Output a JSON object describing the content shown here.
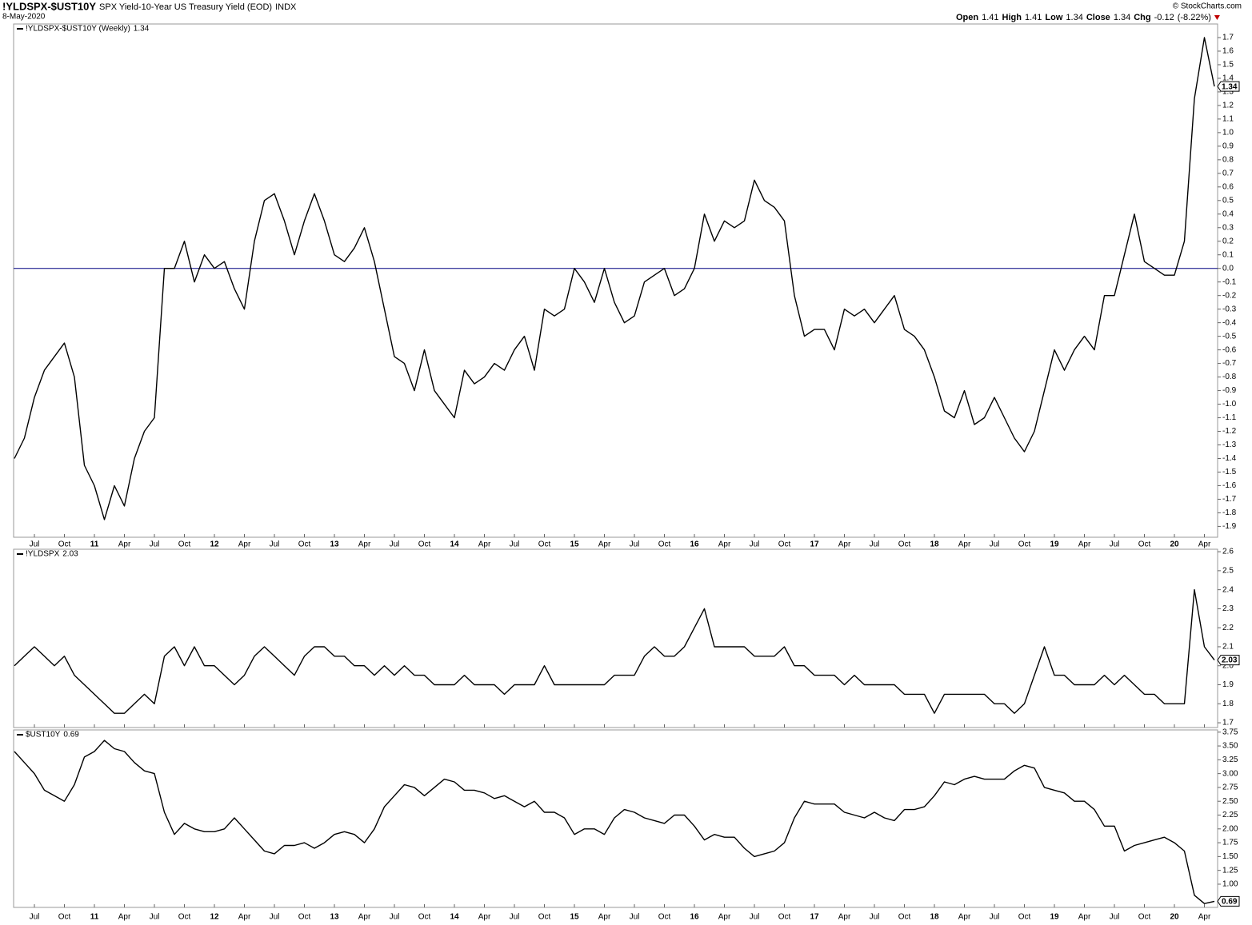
{
  "chart_data": {
    "type": "line",
    "title": "!YLDSPX-$UST10Y",
    "subtitle": "SPX Yield-10-Year US Treasury Yield (EOD)",
    "exchange": "INDX",
    "date": "8-May-2020",
    "source": "© StockCharts.com",
    "quote": [
      {
        "label": "Open",
        "value": 1.41
      },
      {
        "label": "High",
        "value": 1.41
      },
      {
        "label": "Low",
        "value": 1.34
      },
      {
        "label": "Close",
        "value": 1.34
      },
      {
        "label": "Chg",
        "value": -0.12
      }
    ],
    "change_percent": "(-8.22%)",
    "xlim": [
      "2010-05",
      "2020-05"
    ],
    "x": [
      "2010-05",
      "2010-06",
      "2010-07",
      "2010-08",
      "2010-09",
      "2010-10",
      "2010-11",
      "2010-12",
      "2011-01",
      "2011-02",
      "2011-03",
      "2011-04",
      "2011-05",
      "2011-06",
      "2011-07",
      "2011-08",
      "2011-09",
      "2011-10",
      "2011-11",
      "2011-12",
      "2012-01",
      "2012-02",
      "2012-03",
      "2012-04",
      "2012-05",
      "2012-06",
      "2012-07",
      "2012-08",
      "2012-09",
      "2012-10",
      "2012-11",
      "2012-12",
      "2013-01",
      "2013-02",
      "2013-03",
      "2013-04",
      "2013-05",
      "2013-06",
      "2013-07",
      "2013-08",
      "2013-09",
      "2013-10",
      "2013-11",
      "2013-12",
      "2014-01",
      "2014-02",
      "2014-03",
      "2014-04",
      "2014-05",
      "2014-06",
      "2014-07",
      "2014-08",
      "2014-09",
      "2014-10",
      "2014-11",
      "2014-12",
      "2015-01",
      "2015-02",
      "2015-03",
      "2015-04",
      "2015-05",
      "2015-06",
      "2015-07",
      "2015-08",
      "2015-09",
      "2015-10",
      "2015-11",
      "2015-12",
      "2016-01",
      "2016-02",
      "2016-03",
      "2016-04",
      "2016-05",
      "2016-06",
      "2016-07",
      "2016-08",
      "2016-09",
      "2016-10",
      "2016-11",
      "2016-12",
      "2017-01",
      "2017-02",
      "2017-03",
      "2017-04",
      "2017-05",
      "2017-06",
      "2017-07",
      "2017-08",
      "2017-09",
      "2017-10",
      "2017-11",
      "2017-12",
      "2018-01",
      "2018-02",
      "2018-03",
      "2018-04",
      "2018-05",
      "2018-06",
      "2018-07",
      "2018-08",
      "2018-09",
      "2018-10",
      "2018-11",
      "2018-12",
      "2019-01",
      "2019-02",
      "2019-03",
      "2019-04",
      "2019-05",
      "2019-06",
      "2019-07",
      "2019-08",
      "2019-09",
      "2019-10",
      "2019-11",
      "2019-12",
      "2020-01",
      "2020-02",
      "2020-03",
      "2020-04",
      "2020-05"
    ],
    "xticks": [
      {
        "value": "2010-07",
        "label": "Jul"
      },
      {
        "value": "2010-10",
        "label": "Oct"
      },
      {
        "value": "2011-01",
        "label": "11"
      },
      {
        "value": "2011-04",
        "label": "Apr"
      },
      {
        "value": "2011-07",
        "label": "Jul"
      },
      {
        "value": "2011-10",
        "label": "Oct"
      },
      {
        "value": "2012-01",
        "label": "12"
      },
      {
        "value": "2012-04",
        "label": "Apr"
      },
      {
        "value": "2012-07",
        "label": "Jul"
      },
      {
        "value": "2012-10",
        "label": "Oct"
      },
      {
        "value": "2013-01",
        "label": "13"
      },
      {
        "value": "2013-04",
        "label": "Apr"
      },
      {
        "value": "2013-07",
        "label": "Jul"
      },
      {
        "value": "2013-10",
        "label": "Oct"
      },
      {
        "value": "2014-01",
        "label": "14"
      },
      {
        "value": "2014-04",
        "label": "Apr"
      },
      {
        "value": "2014-07",
        "label": "Jul"
      },
      {
        "value": "2014-10",
        "label": "Oct"
      },
      {
        "value": "2015-01",
        "label": "15"
      },
      {
        "value": "2015-04",
        "label": "Apr"
      },
      {
        "value": "2015-07",
        "label": "Jul"
      },
      {
        "value": "2015-10",
        "label": "Oct"
      },
      {
        "value": "2016-01",
        "label": "16"
      },
      {
        "value": "2016-04",
        "label": "Apr"
      },
      {
        "value": "2016-07",
        "label": "Jul"
      },
      {
        "value": "2016-10",
        "label": "Oct"
      },
      {
        "value": "2017-01",
        "label": "17"
      },
      {
        "value": "2017-04",
        "label": "Apr"
      },
      {
        "value": "2017-07",
        "label": "Jul"
      },
      {
        "value": "2017-10",
        "label": "Oct"
      },
      {
        "value": "2018-01",
        "label": "18"
      },
      {
        "value": "2018-04",
        "label": "Apr"
      },
      {
        "value": "2018-07",
        "label": "Jul"
      },
      {
        "value": "2018-10",
        "label": "Oct"
      },
      {
        "value": "2019-01",
        "label": "19"
      },
      {
        "value": "2019-04",
        "label": "Apr"
      },
      {
        "value": "2019-07",
        "label": "Jul"
      },
      {
        "value": "2019-10",
        "label": "Oct"
      },
      {
        "value": "2020-01",
        "label": "20"
      },
      {
        "value": "2020-04",
        "label": "Apr"
      }
    ],
    "panels": [
      {
        "series": [
          {
            "name": "!YLDSPX-$UST10Y (Weekly)",
            "color": "#000000",
            "values": [
              -1.4,
              -1.25,
              -0.95,
              -0.75,
              -0.65,
              -0.55,
              -0.8,
              -1.45,
              -1.6,
              -1.85,
              -1.6,
              -1.75,
              -1.4,
              -1.2,
              -1.1,
              0.0,
              0.0,
              0.2,
              -0.1,
              0.1,
              0.0,
              0.05,
              -0.15,
              -0.3,
              0.2,
              0.5,
              0.55,
              0.35,
              0.1,
              0.35,
              0.55,
              0.35,
              0.1,
              0.05,
              0.15,
              0.3,
              0.05,
              -0.3,
              -0.65,
              -0.7,
              -0.9,
              -0.6,
              -0.9,
              -1.0,
              -1.1,
              -0.75,
              -0.85,
              -0.8,
              -0.7,
              -0.75,
              -0.6,
              -0.5,
              -0.75,
              -0.3,
              -0.35,
              -0.3,
              0.0,
              -0.1,
              -0.25,
              0.0,
              -0.25,
              -0.4,
              -0.35,
              -0.1,
              -0.05,
              0.0,
              -0.2,
              -0.15,
              0.0,
              0.4,
              0.2,
              0.35,
              0.3,
              0.35,
              0.65,
              0.5,
              0.45,
              0.35,
              -0.2,
              -0.5,
              -0.45,
              -0.45,
              -0.6,
              -0.3,
              -0.35,
              -0.3,
              -0.4,
              -0.3,
              -0.2,
              -0.45,
              -0.5,
              -0.6,
              -0.8,
              -1.05,
              -1.1,
              -0.9,
              -1.15,
              -1.1,
              -0.95,
              -1.1,
              -1.25,
              -1.35,
              -1.2,
              -0.9,
              -0.6,
              -0.75,
              -0.6,
              -0.5,
              -0.6,
              -0.2,
              -0.2,
              0.1,
              0.4,
              0.05,
              0.0,
              -0.05,
              -0.05,
              0.2,
              1.25,
              1.7,
              1.34
            ]
          }
        ],
        "ylim": [
          -1.98,
          1.8
        ],
        "yticks": [
          -1.9,
          -1.8,
          -1.7,
          -1.6,
          -1.5,
          -1.4,
          -1.3,
          -1.2,
          -1.1,
          {
            "value": -1,
            "label": "-1.0"
          },
          -0.9,
          -0.8,
          -0.7,
          -0.6,
          -0.5,
          -0.4,
          -0.3,
          -0.2,
          -0.1,
          {
            "value": 0,
            "label": "0.0"
          },
          0.1,
          0.2,
          0.3,
          0.4,
          0.5,
          0.6,
          0.7,
          0.8,
          0.9,
          {
            "value": 1,
            "label": "1.0"
          },
          1.1,
          1.2,
          1.3,
          1.4,
          1.5,
          1.6,
          1.7
        ],
        "reference_lines": [
          {
            "value": 0,
            "color": "#000080"
          }
        ]
      },
      {
        "series": [
          {
            "name": "!YLDSPX",
            "color": "#000000",
            "values": [
              2.0,
              2.05,
              2.1,
              2.05,
              2.0,
              2.05,
              1.95,
              1.9,
              1.85,
              1.8,
              1.75,
              1.75,
              1.8,
              1.85,
              1.8,
              2.05,
              2.1,
              2.0,
              2.1,
              2.0,
              2.0,
              1.95,
              1.9,
              1.95,
              2.05,
              2.1,
              2.05,
              2.0,
              1.95,
              2.05,
              2.1,
              2.1,
              2.05,
              2.05,
              2.0,
              2.0,
              1.95,
              2.0,
              1.95,
              2.0,
              1.95,
              1.95,
              1.9,
              1.9,
              1.9,
              1.95,
              1.9,
              1.9,
              1.9,
              1.85,
              1.9,
              1.9,
              1.9,
              2.0,
              1.9,
              1.9,
              1.9,
              1.9,
              1.9,
              1.9,
              1.95,
              1.95,
              1.95,
              2.05,
              2.1,
              2.05,
              2.05,
              2.1,
              2.2,
              2.3,
              2.1,
              2.1,
              2.1,
              2.1,
              2.05,
              2.05,
              2.05,
              2.1,
              2.0,
              2.0,
              1.95,
              1.95,
              1.95,
              1.9,
              1.95,
              1.9,
              1.9,
              1.9,
              1.9,
              1.85,
              1.85,
              1.85,
              1.75,
              1.85,
              1.85,
              1.85,
              1.85,
              1.85,
              1.8,
              1.8,
              1.75,
              1.8,
              1.95,
              2.1,
              1.95,
              1.95,
              1.9,
              1.9,
              1.9,
              1.95,
              1.9,
              1.95,
              1.9,
              1.85,
              1.85,
              1.8,
              1.8,
              1.8,
              2.4,
              2.1,
              2.03
            ]
          }
        ],
        "ylim": [
          1.675,
          2.613
        ],
        "yticks": [
          1.7,
          1.8,
          1.9,
          {
            "value": 2,
            "label": "2.0"
          },
          2.1,
          2.2,
          2.3,
          2.4,
          2.5,
          2.6
        ]
      },
      {
        "series": [
          {
            "name": "$UST10Y",
            "color": "#000000",
            "values": [
              3.4,
              3.2,
              3.0,
              2.7,
              2.6,
              2.5,
              2.8,
              3.3,
              3.4,
              3.6,
              3.45,
              3.4,
              3.2,
              3.05,
              3.0,
              2.3,
              1.9,
              2.1,
              2.0,
              1.95,
              1.95,
              2.0,
              2.2,
              2.0,
              1.8,
              1.6,
              1.55,
              1.7,
              1.7,
              1.75,
              1.65,
              1.75,
              1.9,
              1.95,
              1.9,
              1.75,
              2.0,
              2.4,
              2.6,
              2.8,
              2.75,
              2.6,
              2.75,
              2.9,
              2.85,
              2.7,
              2.7,
              2.65,
              2.55,
              2.6,
              2.5,
              2.4,
              2.5,
              2.3,
              2.3,
              2.2,
              1.9,
              2.0,
              2.0,
              1.9,
              2.2,
              2.35,
              2.3,
              2.2,
              2.15,
              2.1,
              2.25,
              2.25,
              2.05,
              1.8,
              1.9,
              1.85,
              1.85,
              1.65,
              1.5,
              1.55,
              1.6,
              1.75,
              2.2,
              2.5,
              2.45,
              2.45,
              2.45,
              2.3,
              2.25,
              2.2,
              2.3,
              2.2,
              2.15,
              2.35,
              2.35,
              2.4,
              2.6,
              2.85,
              2.8,
              2.9,
              2.95,
              2.9,
              2.9,
              2.9,
              3.05,
              3.15,
              3.1,
              2.75,
              2.7,
              2.65,
              2.5,
              2.5,
              2.35,
              2.05,
              2.05,
              1.6,
              1.7,
              1.75,
              1.8,
              1.85,
              1.75,
              1.6,
              0.8,
              0.65,
              0.69
            ]
          }
        ],
        "ylim": [
          0.58,
          3.79
        ],
        "yticks": [
          {
            "value": 1,
            "label": "1.00"
          },
          1.25,
          {
            "value": 1.5,
            "label": "1.50"
          },
          1.75,
          {
            "value": 2,
            "label": "2.00"
          },
          2.25,
          {
            "value": 2.5,
            "label": "2.50"
          },
          2.75,
          {
            "value": 3,
            "label": "3.00"
          },
          3.25,
          {
            "value": 3.5,
            "label": "3.50"
          },
          3.75
        ]
      }
    ]
  }
}
